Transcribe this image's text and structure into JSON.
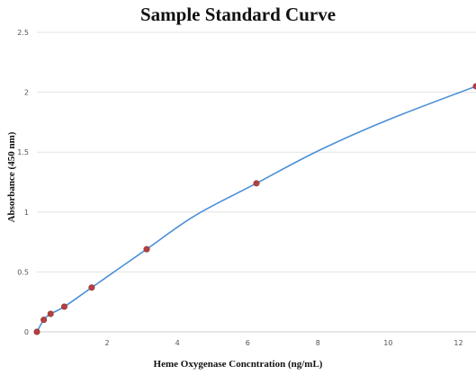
{
  "chart_data": {
    "type": "scatter",
    "title": "Sample Standard Curve",
    "xlabel": "Heme Oxygenase Concntration (ng/mL)",
    "ylabel": "Absorbance (450 nm)",
    "xlim": [
      0,
      12.5
    ],
    "ylim": [
      0,
      2.5
    ],
    "xticks": [
      2,
      4,
      6,
      8,
      10,
      12
    ],
    "xtick_labels": [
      "2",
      "4",
      "6",
      "8",
      "10",
      "12"
    ],
    "yticks": [
      0,
      0.5,
      1,
      1.5,
      2,
      2.5
    ],
    "ytick_labels": [
      "0",
      "0.5",
      "1",
      "1.5",
      "2",
      "2.5"
    ],
    "grid": true,
    "points": {
      "x": [
        0.0,
        0.195,
        0.39,
        0.78,
        1.56,
        3.125,
        6.25,
        12.5
      ],
      "y": [
        0.0,
        0.1,
        0.15,
        0.21,
        0.37,
        0.69,
        1.24,
        2.05
      ]
    },
    "curve": {
      "x": [
        0.0,
        0.195,
        0.39,
        0.78,
        1.56,
        3.125,
        4.5,
        6.25,
        8.0,
        10.0,
        12.5
      ],
      "y": [
        0.0,
        0.1,
        0.15,
        0.21,
        0.37,
        0.69,
        0.97,
        1.24,
        1.51,
        1.77,
        2.05
      ]
    },
    "colors": {
      "line": "#4a8fd6",
      "marker": "#b5403f",
      "grid": "#e3e3e3",
      "axis": "#cccccc"
    }
  }
}
